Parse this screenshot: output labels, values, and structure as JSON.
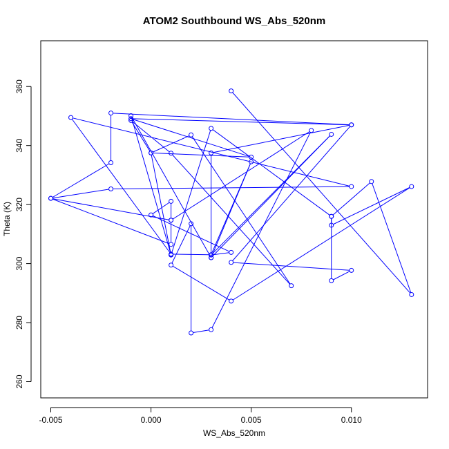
{
  "chart_data": {
    "type": "line",
    "title": "ATOM2 Southbound WS_Abs_520nm",
    "xlabel": "WS_Abs_520nm",
    "ylabel": "Theta (K)",
    "xlim": [
      -0.0055,
      0.0138
    ],
    "ylim": [
      254.5,
      375.5
    ],
    "xticks": [
      -0.005,
      0.0,
      0.005,
      0.01
    ],
    "xtick_labels": [
      "-0.005",
      "0.000",
      "0.005",
      "0.010"
    ],
    "yticks": [
      260,
      280,
      300,
      320,
      340,
      360
    ],
    "ytick_labels": [
      "260",
      "280",
      "300",
      "320",
      "340",
      "360"
    ],
    "grid": false,
    "legend": "none",
    "color": "#0000ff",
    "series": [
      {
        "x": [
          0.004,
          0.013,
          0.011,
          0.009,
          0.009,
          0.013,
          0.004,
          0.001,
          0.002,
          0.002,
          0.003,
          0.008,
          0.001,
          0.001,
          0.0,
          0.004,
          0.003,
          0.009,
          0.003,
          0.003,
          0.01,
          0.004,
          0.01,
          0.009,
          0.009,
          0.003,
          0.001,
          0.0,
          -0.001,
          0.001,
          0.007,
          0.002,
          0.0,
          0.005,
          -0.001,
          0.01,
          -0.002,
          -0.002,
          -0.005,
          0.001,
          0.001,
          -0.005,
          -0.002,
          0.01,
          -0.004,
          0.001,
          0.003,
          0.005,
          0.003,
          -0.001,
          0.001
        ],
        "y": [
          358.5,
          289.5,
          327.8,
          316.0,
          313.0,
          326.1,
          287.3,
          299.5,
          313.5,
          276.5,
          277.6,
          345.1,
          314.7,
          321.1,
          316.5,
          303.8,
          302.9,
          343.8,
          302.0,
          337.5,
          347.0,
          300.4,
          297.7,
          294.2,
          316.0,
          345.8,
          302.9,
          337.5,
          348.5,
          337.4,
          292.5,
          343.6,
          337.5,
          336.1,
          349.1,
          347.0,
          351.0,
          334.2,
          322.1,
          306.5,
          314.7,
          322.1,
          325.3,
          326.1,
          349.5,
          303.2,
          303.0,
          334.5,
          302.0,
          350.1,
          303.0
        ]
      }
    ]
  }
}
